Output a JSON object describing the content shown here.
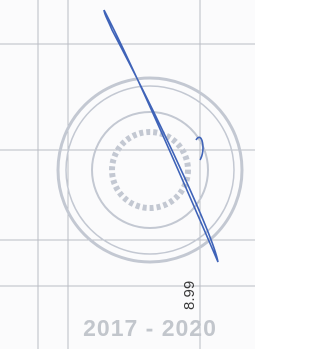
{
  "annotation": "8.99",
  "footer_text": "2017 - 2020"
}
